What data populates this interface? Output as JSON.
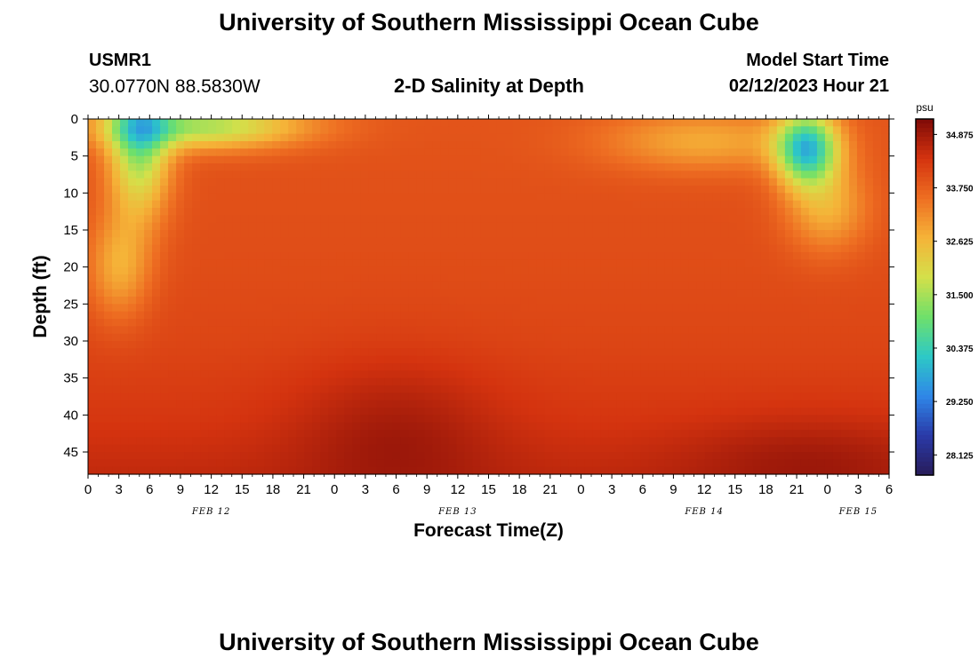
{
  "header": {
    "title": "University of Southern Mississippi Ocean Cube",
    "station": "USMR1",
    "coords": "30.0770N  88.5830W",
    "subtitle": "2-D Salinity at Depth",
    "model_start_label": "Model Start Time",
    "model_start_value": "02/12/2023 Hour 21"
  },
  "footer": {
    "title": "University of Southern Mississippi Ocean Cube"
  },
  "chart_data": {
    "type": "heatmap",
    "title": "2-D Salinity at Depth",
    "xlabel": "Forecast Time(Z)",
    "ylabel": "Depth (ft)",
    "x_range_hours": [
      0,
      78
    ],
    "x_ticks": [
      "0",
      "3",
      "6",
      "9",
      "12",
      "15",
      "18",
      "21",
      "0",
      "3",
      "6",
      "9",
      "12",
      "15",
      "18",
      "21",
      "0",
      "3",
      "6",
      "9",
      "12",
      "15",
      "18",
      "21",
      "0",
      "3",
      "6"
    ],
    "date_labels": [
      {
        "label": "FEB 12",
        "hour": 12
      },
      {
        "label": "FEB 13",
        "hour": 36
      },
      {
        "label": "FEB 14",
        "hour": 60
      },
      {
        "label": "FEB 15",
        "hour": 75
      }
    ],
    "y_range_ft": [
      0,
      48
    ],
    "y_ticks": [
      0,
      5,
      10,
      15,
      20,
      25,
      30,
      35,
      40,
      45
    ],
    "colorbar": {
      "unit": "psu",
      "min": 27.7,
      "max": 35.2,
      "labels": [
        "34.875",
        "33.750",
        "32.625",
        "31.500",
        "30.375",
        "29.250",
        "28.125"
      ],
      "colors": [
        "#281c5a",
        "#2a3aa8",
        "#2f87e8",
        "#2dc9c6",
        "#6fe06a",
        "#d4e04a",
        "#f5b338",
        "#ee6e22",
        "#d4330f",
        "#7e0a07"
      ]
    },
    "base_profile": [
      {
        "depth": 0,
        "psu": 33.9
      },
      {
        "depth": 20,
        "psu": 34.0
      },
      {
        "depth": 30,
        "psu": 34.1
      },
      {
        "depth": 40,
        "psu": 34.3
      },
      {
        "depth": 48,
        "psu": 34.55
      }
    ],
    "features": [
      {
        "kind": "low",
        "hour": 5,
        "depth": 3,
        "hour_spread": 3,
        "depth_spread": 10,
        "psu_change": -2.7
      },
      {
        "kind": "low",
        "hour": 11,
        "depth": 1,
        "hour_spread": 10,
        "depth_spread": 3,
        "psu_change": -2.4
      },
      {
        "kind": "low",
        "hour": 3,
        "depth": 20,
        "hour_spread": 3,
        "depth_spread": 7,
        "psu_change": -1.2
      },
      {
        "kind": "low",
        "hour": 70,
        "depth": 4,
        "hour_spread": 3,
        "depth_spread": 5,
        "psu_change": -3.6
      },
      {
        "kind": "low",
        "hour": 72,
        "depth": 12,
        "hour_spread": 4,
        "depth_spread": 6,
        "psu_change": -1.2
      },
      {
        "kind": "low",
        "hour": 60,
        "depth": 3,
        "hour_spread": 10,
        "depth_spread": 4,
        "psu_change": -1.1
      },
      {
        "kind": "high",
        "hour": 30,
        "depth": 42,
        "hour_spread": 10,
        "depth_spread": 10,
        "psu_change": 0.5
      },
      {
        "kind": "high",
        "hour": 70,
        "depth": 46,
        "hour_spread": 12,
        "depth_spread": 6,
        "psu_change": 0.4
      }
    ]
  }
}
